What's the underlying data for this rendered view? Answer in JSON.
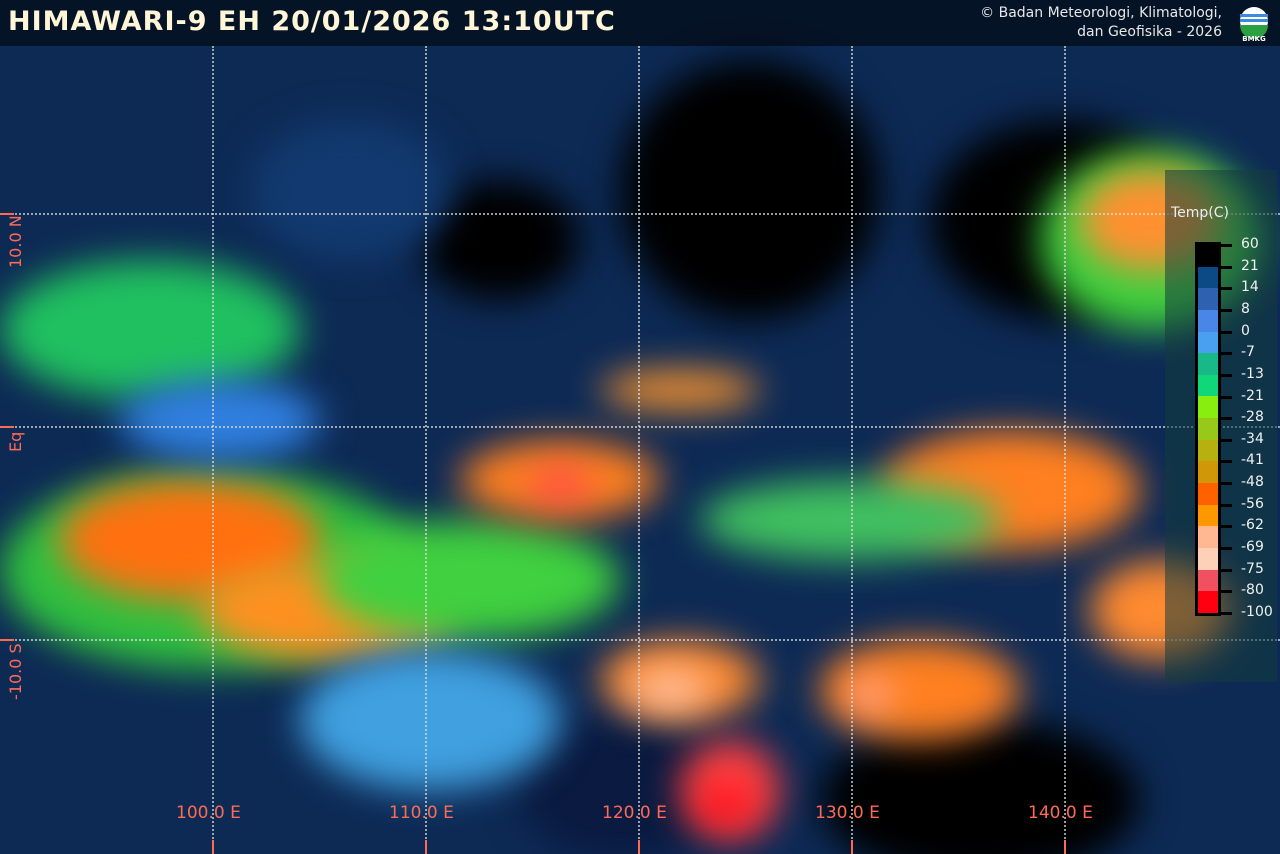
{
  "header": {
    "title": "HIMAWARI-9 EH  20/01/2026 13:10UTC",
    "credit_line1": "© Badan Meteorologi, Klimatologi,",
    "credit_line2": "dan Geofisika -  2026",
    "logo_text": "BMKG"
  },
  "axes": {
    "longitude_labels": [
      "100.0 E",
      "110.0 E",
      "120.0 E",
      "130.0 E",
      "140.0 E"
    ],
    "latitude_labels": [
      "10.0 N",
      "Eq",
      "-10.0 S"
    ]
  },
  "legend": {
    "title": "Temp(C)",
    "labels": [
      "60",
      "21",
      "14",
      "8",
      "0",
      "-7",
      "-13",
      "-21",
      "-28",
      "-34",
      "-41",
      "-48",
      "-56",
      "-62",
      "-69",
      "-75",
      "-80",
      "-100"
    ],
    "colors": [
      "#000000",
      "#0c4a86",
      "#2e62b0",
      "#4a86e8",
      "#4aa0f0",
      "#18b888",
      "#10d878",
      "#88ee10",
      "#98c818",
      "#b8b010",
      "#d09808",
      "#ff6000",
      "#ff9800",
      "#ffb890",
      "#ffd0b8",
      "#f05060",
      "#ff0010"
    ]
  }
}
